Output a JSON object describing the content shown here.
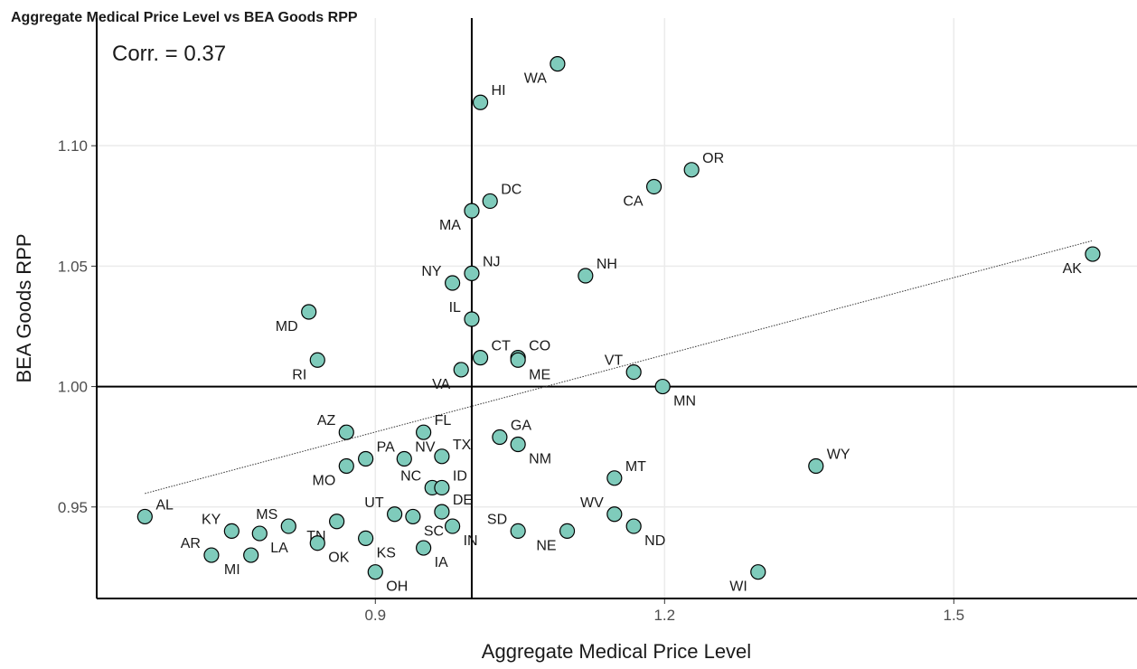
{
  "chart_data": {
    "type": "scatter",
    "title": "Aggregate Medical Price Level vs BEA Goods RPP",
    "annotation": "Corr. = 0.37",
    "x_label": "Aggregate Medical Price Level",
    "y_label": "BEA Goods RPP",
    "xlim": [
      0.611,
      1.69
    ],
    "ylim": [
      0.912,
      1.153
    ],
    "xticks": [
      0.9,
      1.2,
      1.5
    ],
    "yticks": [
      0.95,
      {
        "value": 1.0,
        "label": "1.00"
      },
      1.05,
      {
        "value": 1.1,
        "label": "1.10"
      }
    ],
    "grid": true,
    "color": "#7fcbbb",
    "reference_lines": {
      "x": 1.0,
      "y": 1.0
    },
    "trend_line": {
      "x": [
        0.661,
        1.643
      ],
      "y": [
        0.9556,
        1.0605
      ]
    },
    "labels": [
      "WA",
      "HI",
      "OR",
      "CA",
      "DC",
      "MA",
      "NJ",
      "NY",
      "NH",
      "AK",
      "MD",
      "IL",
      "RI",
      "CT",
      "CO",
      "ME",
      "VT",
      "VA",
      "MN",
      "AZ",
      "FL",
      "GA",
      "NM",
      "TX",
      "PA",
      "NV",
      "MO",
      "WY",
      "MT",
      "NC",
      "ID",
      "AL",
      "UT",
      "DE",
      "WV",
      "SC",
      "TN",
      "MS",
      "IN",
      "ND",
      "KY",
      "LA",
      "SD",
      "NE",
      "OK",
      "KS",
      "IA",
      "AR",
      "MI",
      "WI",
      "OH"
    ],
    "x": [
      1.089,
      1.009,
      1.228,
      1.189,
      1.019,
      1.0,
      1.0,
      0.98,
      1.118,
      1.644,
      0.831,
      1.0,
      0.84,
      1.009,
      1.048,
      1.048,
      1.168,
      0.989,
      1.198,
      0.87,
      0.95,
      1.029,
      1.048,
      0.969,
      0.89,
      0.93,
      0.87,
      1.357,
      1.148,
      0.959,
      0.969,
      0.661,
      0.92,
      0.969,
      1.148,
      0.939,
      0.86,
      0.81,
      0.98,
      1.168,
      0.751,
      0.78,
      1.048,
      1.099,
      0.84,
      0.89,
      0.95,
      0.73,
      0.771,
      1.297,
      0.9
    ],
    "y": [
      1.134,
      1.118,
      1.09,
      1.083,
      1.077,
      1.073,
      1.047,
      1.043,
      1.046,
      1.055,
      1.031,
      1.028,
      1.011,
      1.012,
      1.012,
      1.011,
      1.006,
      1.007,
      1.0,
      0.981,
      0.981,
      0.979,
      0.976,
      0.971,
      0.97,
      0.97,
      0.967,
      0.967,
      0.962,
      0.958,
      0.958,
      0.946,
      0.947,
      0.948,
      0.947,
      0.946,
      0.944,
      0.942,
      0.942,
      0.942,
      0.94,
      0.939,
      0.94,
      0.94,
      0.935,
      0.937,
      0.933,
      0.93,
      0.93,
      0.923,
      0.923
    ]
  }
}
